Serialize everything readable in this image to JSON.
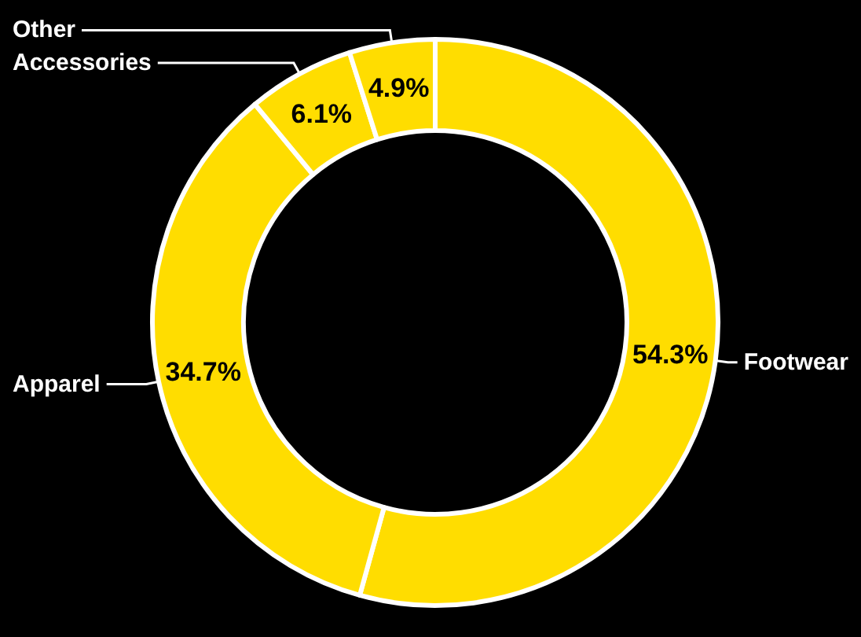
{
  "chart_data": {
    "type": "donut",
    "categories": [
      "Footwear",
      "Apparel",
      "Accessories",
      "Other"
    ],
    "values": [
      54.3,
      34.7,
      6.1,
      4.9
    ],
    "value_labels": [
      "54.3%",
      "34.7%",
      "6.1%",
      "4.9%"
    ],
    "colors": [
      "#ffdd00",
      "#ffdd00",
      "#ffdd00",
      "#ffdd00"
    ],
    "legend": false
  }
}
